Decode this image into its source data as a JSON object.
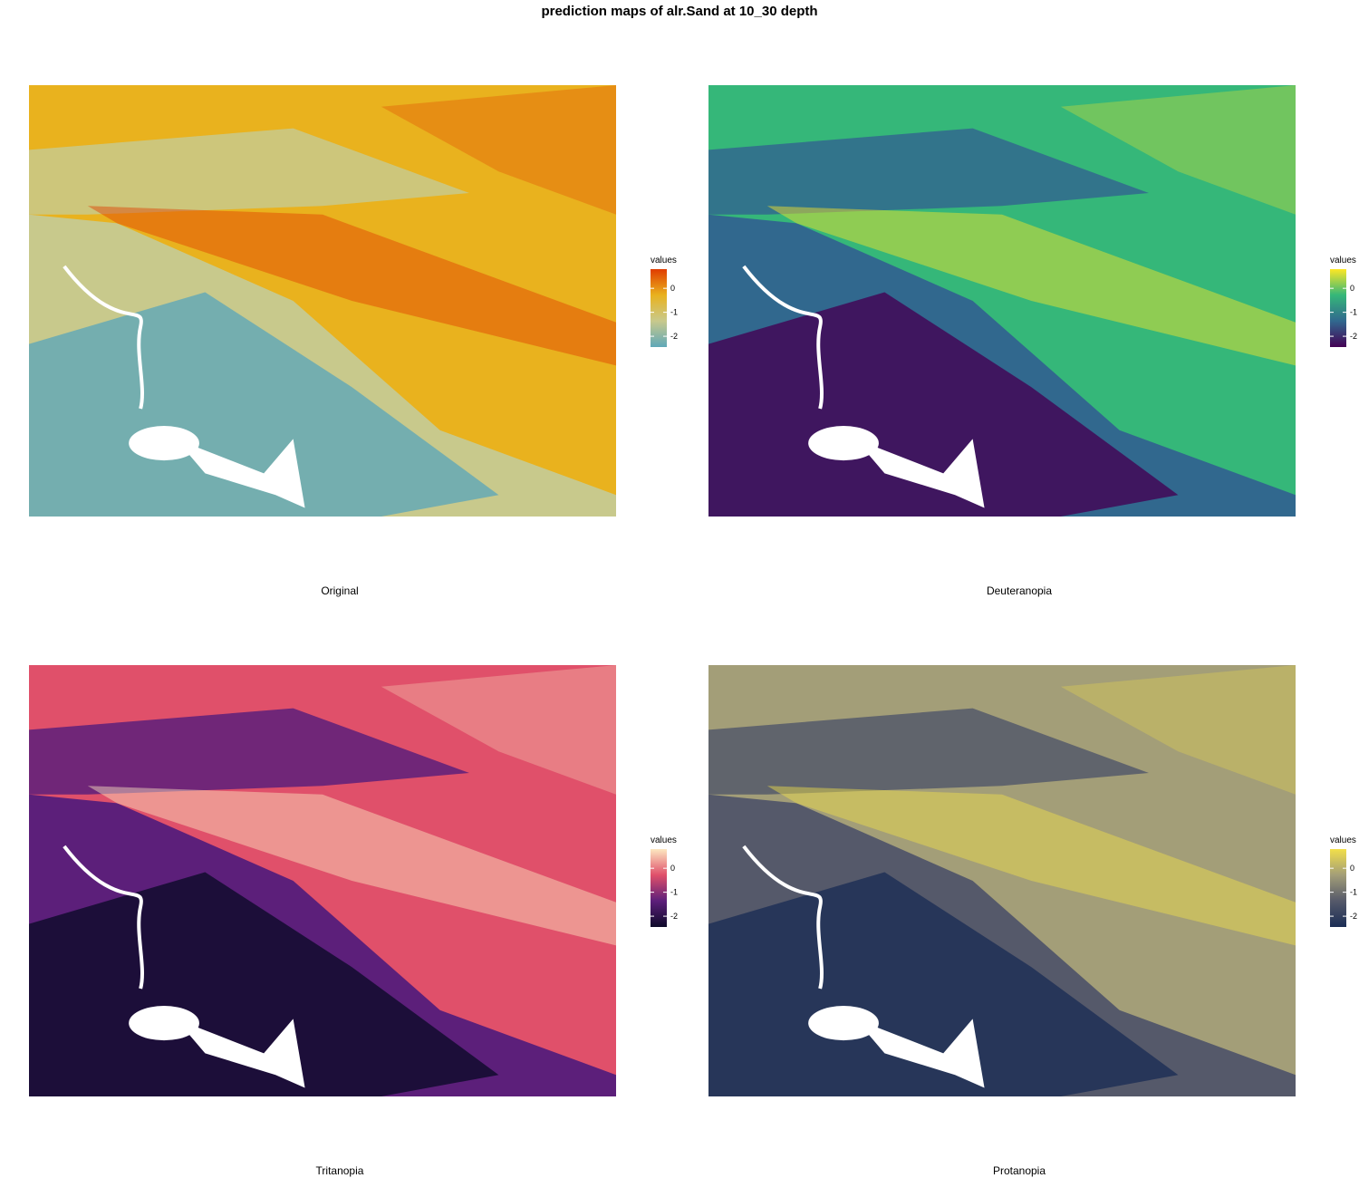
{
  "title": "prediction maps of alr.Sand at 10_30 depth",
  "legend": {
    "title": "values",
    "lim": [
      -2.45,
      0.8
    ],
    "ticks": [
      0,
      -1,
      -2
    ]
  },
  "panels": [
    {
      "caption": "Original",
      "colors": [
        "#5fa8b8",
        "#c8c98c",
        "#e9b21e",
        "#e03c00"
      ]
    },
    {
      "caption": "Deuteranopia",
      "colors": [
        "#440154",
        "#31688e",
        "#35b779",
        "#fde725"
      ]
    },
    {
      "caption": "Tritanopia",
      "colors": [
        "#0d0a29",
        "#5c1f7a",
        "#e0506a",
        "#fde8c0"
      ]
    },
    {
      "caption": "Protanopia",
      "colors": [
        "#1b2d55",
        "#55596a",
        "#a39e78",
        "#f2df4a"
      ]
    }
  ]
}
